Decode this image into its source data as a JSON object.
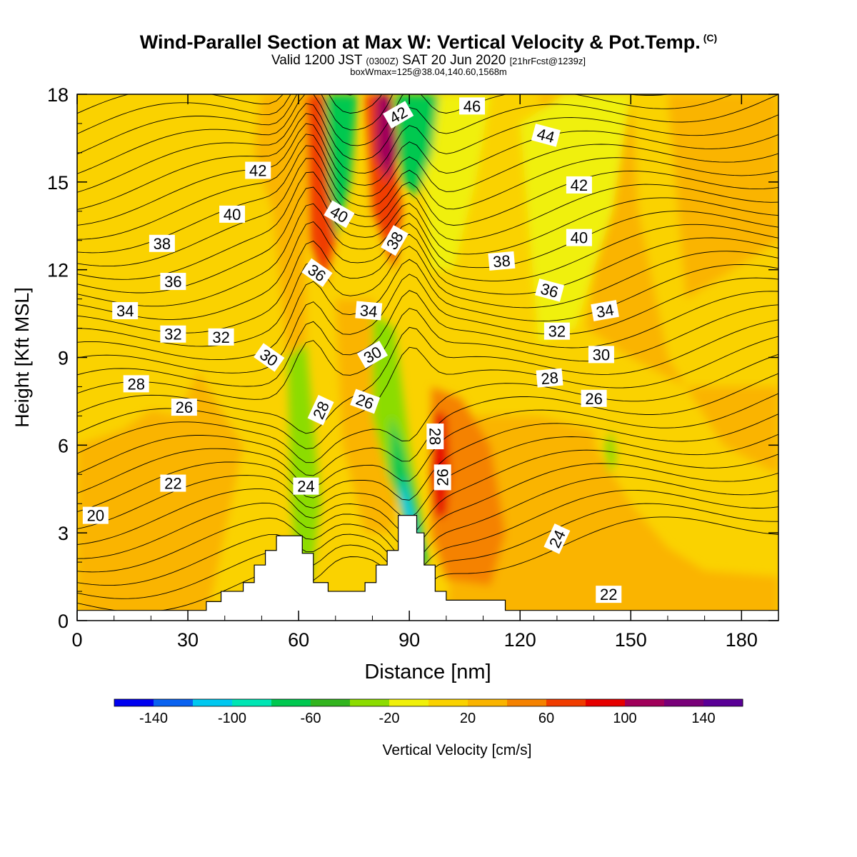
{
  "title": {
    "main": "Wind-Parallel Section at Max W: Vertical Velocity & Pot.Temp.",
    "copyright": "(C)",
    "valid_prefix": "Valid 1200 JST",
    "valid_utc": "(0300Z)",
    "valid_date": "SAT 20 Jun 2020",
    "forecast": "[21hrFcst@1239z]",
    "box": "boxWmax=125@38.04,140.60,1568m"
  },
  "chart_data": {
    "type": "heatmap",
    "xlabel": "Distance [nm]",
    "ylabel": "Height [Kft MSL]",
    "xlim": [
      0,
      190
    ],
    "ylim": [
      0,
      18
    ],
    "x_ticks": [
      0,
      30,
      60,
      90,
      120,
      150,
      180
    ],
    "y_ticks": [
      0,
      3,
      6,
      9,
      12,
      15,
      18
    ],
    "colorbar": {
      "label": "Vertical Velocity [cm/s]",
      "range": [
        -160,
        160
      ],
      "tick_labels": [
        -140,
        -100,
        -60,
        -20,
        20,
        60,
        100,
        140
      ],
      "colors": [
        "#0000f0",
        "#0a62f0",
        "#00c8f0",
        "#00e6b4",
        "#00c850",
        "#32b41e",
        "#8cdc00",
        "#f0f00a",
        "#fad200",
        "#fab400",
        "#f58200",
        "#f03c00",
        "#e60000",
        "#a0005a",
        "#780078",
        "#5a0096"
      ]
    },
    "fill_regions": [
      {
        "name": "upper-orange-left",
        "value": 70,
        "x": [
          62,
          70
        ],
        "y": [
          12,
          18
        ]
      },
      {
        "name": "upper-cyan-left",
        "value": -80,
        "x": [
          62,
          76
        ],
        "y": [
          13,
          18
        ]
      },
      {
        "name": "upper-red-center",
        "value": 95,
        "x": [
          80,
          88
        ],
        "y": [
          14,
          18
        ]
      },
      {
        "name": "upper-cyan-center",
        "value": -90,
        "x": [
          86,
          99
        ],
        "y": [
          14.5,
          18
        ]
      },
      {
        "name": "lower-cyan-diagonal",
        "value": -90,
        "x": [
          83,
          96
        ],
        "y": [
          2,
          7
        ]
      },
      {
        "name": "lower-red-core",
        "value": 105,
        "x": [
          95,
          101
        ],
        "y": [
          3.5,
          7.5
        ]
      },
      {
        "name": "lower-orange-plume",
        "value": 60,
        "x": [
          96,
          115
        ],
        "y": [
          1,
          8
        ]
      },
      {
        "name": "lower-gold-region",
        "value": 35,
        "x": [
          108,
          142
        ],
        "y": [
          1,
          7
        ]
      }
    ],
    "contours": {
      "label": "Pot.Temp.",
      "labels": [
        {
          "text": "20",
          "x": 5,
          "y": 3.6,
          "rot": 0
        },
        {
          "text": "22",
          "x": 26,
          "y": 4.7,
          "rot": 0
        },
        {
          "text": "22",
          "x": 144,
          "y": 0.9,
          "rot": 0
        },
        {
          "text": "24",
          "x": 62,
          "y": 4.6,
          "rot": 0
        },
        {
          "text": "24",
          "x": 130,
          "y": 2.8,
          "rot": -65
        },
        {
          "text": "26",
          "x": 29,
          "y": 7.3,
          "rot": 0
        },
        {
          "text": "26",
          "x": 78,
          "y": 7.5,
          "rot": 20
        },
        {
          "text": "26",
          "x": 99,
          "y": 4.9,
          "rot": -90
        },
        {
          "text": "26",
          "x": 140,
          "y": 7.6,
          "rot": 0
        },
        {
          "text": "28",
          "x": 16,
          "y": 8.1,
          "rot": 0
        },
        {
          "text": "28",
          "x": 66,
          "y": 7.2,
          "rot": -65
        },
        {
          "text": "28",
          "x": 97,
          "y": 6.3,
          "rot": 90
        },
        {
          "text": "28",
          "x": 128,
          "y": 8.3,
          "rot": -5
        },
        {
          "text": "30",
          "x": 52,
          "y": 9,
          "rot": 35
        },
        {
          "text": "30",
          "x": 80,
          "y": 9.1,
          "rot": -30
        },
        {
          "text": "30",
          "x": 142,
          "y": 9.1,
          "rot": 0
        },
        {
          "text": "32",
          "x": 26,
          "y": 9.8,
          "rot": 0
        },
        {
          "text": "32",
          "x": 39,
          "y": 9.7,
          "rot": 0
        },
        {
          "text": "32",
          "x": 130,
          "y": 9.9,
          "rot": 0
        },
        {
          "text": "34",
          "x": 13,
          "y": 10.6,
          "rot": 0
        },
        {
          "text": "34",
          "x": 79,
          "y": 10.6,
          "rot": 5
        },
        {
          "text": "34",
          "x": 143,
          "y": 10.6,
          "rot": -10
        },
        {
          "text": "36",
          "x": 26,
          "y": 11.6,
          "rot": 0
        },
        {
          "text": "36",
          "x": 65,
          "y": 11.9,
          "rot": 35
        },
        {
          "text": "36",
          "x": 128,
          "y": 11.3,
          "rot": 15
        },
        {
          "text": "38",
          "x": 23,
          "y": 12.9,
          "rot": 0
        },
        {
          "text": "38",
          "x": 86,
          "y": 13.0,
          "rot": -60
        },
        {
          "text": "38",
          "x": 115,
          "y": 12.3,
          "rot": -5
        },
        {
          "text": "40",
          "x": 42,
          "y": 13.9,
          "rot": 0
        },
        {
          "text": "40",
          "x": 71,
          "y": 13.9,
          "rot": 30
        },
        {
          "text": "40",
          "x": 136,
          "y": 13.1,
          "rot": 0
        },
        {
          "text": "42",
          "x": 49,
          "y": 15.4,
          "rot": 0
        },
        {
          "text": "42",
          "x": 87,
          "y": 17.3,
          "rot": -30
        },
        {
          "text": "42",
          "x": 136,
          "y": 14.9,
          "rot": 0
        },
        {
          "text": "44",
          "x": 127,
          "y": 16.6,
          "rot": 15
        },
        {
          "text": "46",
          "x": 107,
          "y": 17.6,
          "rot": 0
        }
      ]
    },
    "terrain": [
      [
        0,
        0.35
      ],
      [
        35,
        0.35
      ],
      [
        35,
        0.65
      ],
      [
        39,
        0.65
      ],
      [
        39,
        1.0
      ],
      [
        45,
        1.0
      ],
      [
        45,
        1.3
      ],
      [
        48,
        1.3
      ],
      [
        48,
        1.9
      ],
      [
        51,
        1.9
      ],
      [
        51,
        2.4
      ],
      [
        54,
        2.4
      ],
      [
        54,
        2.9
      ],
      [
        61,
        2.9
      ],
      [
        61,
        2.3
      ],
      [
        64,
        2.3
      ],
      [
        64,
        1.3
      ],
      [
        68,
        1.3
      ],
      [
        68,
        1.0
      ],
      [
        78,
        1.0
      ],
      [
        78,
        1.3
      ],
      [
        81,
        1.3
      ],
      [
        81,
        1.9
      ],
      [
        84,
        1.9
      ],
      [
        84,
        2.4
      ],
      [
        87,
        2.4
      ],
      [
        87,
        3.6
      ],
      [
        92,
        3.6
      ],
      [
        92,
        3.0
      ],
      [
        94,
        3.0
      ],
      [
        94,
        1.9
      ],
      [
        97,
        1.9
      ],
      [
        97,
        1.0
      ],
      [
        100,
        1.0
      ],
      [
        100,
        0.7
      ],
      [
        116,
        0.7
      ],
      [
        116,
        0.35
      ],
      [
        190,
        0.35
      ]
    ]
  }
}
